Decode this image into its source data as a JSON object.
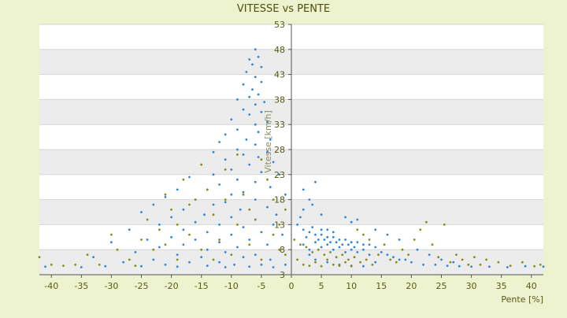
{
  "colors": {
    "background": "#eef3cf",
    "plot_band_light": "#ffffff",
    "plot_band_dark": "#ececec",
    "gridline": "#d6d6d6",
    "axis": "#555555",
    "text": "#595916",
    "series_blue": "#2e86d6",
    "series_olive": "#8a8a18"
  },
  "chart_data": {
    "type": "scatter",
    "title": "VITESSE vs PENTE",
    "xlabel": "Pente [%]",
    "ylabel": "Vitesse [km/h]",
    "xlim": [
      -42,
      42
    ],
    "ylim": [
      3,
      53
    ],
    "x_ticks": [
      -40,
      -35,
      -30,
      -25,
      -20,
      -15,
      -10,
      -5,
      0,
      5,
      10,
      15,
      20,
      25,
      30,
      35,
      40
    ],
    "y_ticks": [
      3,
      8,
      13,
      18,
      23,
      28,
      33,
      38,
      43,
      48,
      53
    ],
    "grid": true,
    "legend": "none",
    "series": [
      {
        "color": "#2e86d6",
        "points": [
          [
            -6,
            48
          ],
          [
            -5.5,
            46.5
          ],
          [
            -7,
            46
          ],
          [
            -6.5,
            45
          ],
          [
            -5,
            44.5
          ],
          [
            -7.5,
            43.5
          ],
          [
            -6,
            42.5
          ],
          [
            -5,
            41.5
          ],
          [
            -8,
            41
          ],
          [
            -6.5,
            40
          ],
          [
            -5.5,
            39
          ],
          [
            -7,
            38.5
          ],
          [
            -9,
            38
          ],
          [
            -4.5,
            37.5
          ],
          [
            -6,
            37
          ],
          [
            -8,
            36
          ],
          [
            -5,
            35.5
          ],
          [
            -7,
            35
          ],
          [
            -10,
            34
          ],
          [
            -4,
            33.5
          ],
          [
            -6,
            33
          ],
          [
            -9,
            32
          ],
          [
            -5.5,
            31.5
          ],
          [
            -11,
            31
          ],
          [
            -7.5,
            30
          ],
          [
            -3.5,
            30
          ],
          [
            -12,
            29.5
          ],
          [
            -6,
            29
          ],
          [
            -9,
            28
          ],
          [
            -4,
            27.5
          ],
          [
            -13,
            27.5
          ],
          [
            -8,
            27
          ],
          [
            -5.5,
            26.5
          ],
          [
            -11,
            26
          ],
          [
            -3,
            25.5
          ],
          [
            -15,
            25
          ],
          [
            -7,
            25
          ],
          [
            -10,
            24
          ],
          [
            -5,
            23.5
          ],
          [
            -13,
            23
          ],
          [
            -2,
            23
          ],
          [
            -17,
            22.5
          ],
          [
            -9,
            22
          ],
          [
            -6,
            21.5
          ],
          [
            -12,
            21
          ],
          [
            -3.5,
            20.5
          ],
          [
            -19,
            20
          ],
          [
            -14,
            20
          ],
          [
            -8,
            19.5
          ],
          [
            -10,
            19
          ],
          [
            -1,
            19
          ],
          [
            -21,
            18.5
          ],
          [
            -16,
            18
          ],
          [
            -6,
            18
          ],
          [
            -11,
            17.5
          ],
          [
            3,
            18
          ],
          [
            -23,
            17
          ],
          [
            -13,
            17
          ],
          [
            -4,
            16.5
          ],
          [
            -18,
            16
          ],
          [
            -8.5,
            16
          ],
          [
            -25,
            15.5
          ],
          [
            -14.5,
            15
          ],
          [
            -2.5,
            15
          ],
          [
            -20,
            14.5
          ],
          [
            -10,
            14.5
          ],
          [
            -6,
            14
          ],
          [
            -16,
            13.5
          ],
          [
            -22,
            13
          ],
          [
            -12,
            13
          ],
          [
            -3,
            13
          ],
          [
            -8,
            12.5
          ],
          [
            -18,
            12
          ],
          [
            -27,
            12
          ],
          [
            -14,
            11.5
          ],
          [
            -5,
            11.5
          ],
          [
            -10,
            11
          ],
          [
            -20,
            10.5
          ],
          [
            -1.5,
            11
          ],
          [
            -24,
            10
          ],
          [
            -16,
            10
          ],
          [
            -7,
            10
          ],
          [
            -12,
            9.5
          ],
          [
            -30,
            9.5
          ],
          [
            -4,
            9
          ],
          [
            -18,
            9
          ],
          [
            -9,
            8.5
          ],
          [
            -22,
            8.5
          ],
          [
            -14,
            8
          ],
          [
            -2,
            8
          ],
          [
            -26,
            7.5
          ],
          [
            -11,
            7.5
          ],
          [
            -6,
            7
          ],
          [
            -19,
            7
          ],
          [
            -15,
            6.5
          ],
          [
            -33,
            6.5
          ],
          [
            -8,
            6.5
          ],
          [
            -3.5,
            6
          ],
          [
            -23,
            6
          ],
          [
            -12,
            5.5
          ],
          [
            -28,
            5.5
          ],
          [
            -17,
            5.5
          ],
          [
            -5,
            5
          ],
          [
            -21,
            5
          ],
          [
            -9.5,
            5
          ],
          [
            -1,
            5
          ],
          [
            -14,
            4.8
          ],
          [
            -31,
            4.7
          ],
          [
            -25,
            4.7
          ],
          [
            -7,
            4.6
          ],
          [
            -19,
            4.6
          ],
          [
            -35,
            4.5
          ],
          [
            -11,
            4.5
          ],
          [
            -3,
            4.5
          ],
          [
            -41,
            4.6
          ],
          [
            1,
            13
          ],
          [
            2,
            12
          ],
          [
            3,
            11.5
          ],
          [
            4,
            11
          ],
          [
            5,
            11
          ],
          [
            6,
            10.5
          ],
          [
            7,
            10.5
          ],
          [
            8,
            10
          ],
          [
            9,
            10
          ],
          [
            10,
            9.5
          ],
          [
            11,
            9.5
          ],
          [
            12,
            9
          ],
          [
            13,
            9
          ],
          [
            14,
            8.5
          ],
          [
            4.5,
            10
          ],
          [
            5.5,
            10
          ],
          [
            6.5,
            9.5
          ],
          [
            7.5,
            9.5
          ],
          [
            8.5,
            9
          ],
          [
            9.5,
            9
          ],
          [
            10.5,
            8.5
          ],
          [
            3.5,
            12.5
          ],
          [
            5,
            12
          ],
          [
            6,
            12
          ],
          [
            7,
            11.5
          ],
          [
            2.5,
            10.5
          ],
          [
            4,
            9.5
          ],
          [
            6,
            9
          ],
          [
            8,
            8.5
          ],
          [
            10,
            8
          ],
          [
            12,
            8
          ],
          [
            5,
            8.5
          ],
          [
            7,
            8
          ],
          [
            9,
            7.5
          ],
          [
            11,
            7.5
          ],
          [
            3,
            8
          ],
          [
            13,
            7
          ],
          [
            15,
            7.5
          ],
          [
            16,
            7
          ],
          [
            17,
            6.5
          ],
          [
            18,
            6
          ],
          [
            19,
            6
          ],
          [
            20,
            5.5
          ],
          [
            22,
            5
          ],
          [
            24,
            5
          ],
          [
            26,
            4.8
          ],
          [
            28,
            4.7
          ],
          [
            30,
            4.6
          ],
          [
            33,
            4.6
          ],
          [
            36,
            4.5
          ],
          [
            39,
            4.7
          ],
          [
            42,
            4.6
          ],
          [
            2,
            16
          ],
          [
            3.5,
            17
          ],
          [
            5,
            15
          ],
          [
            9,
            14.5
          ],
          [
            10,
            13.5
          ],
          [
            11,
            14
          ],
          [
            14,
            12
          ],
          [
            16,
            11
          ],
          [
            18,
            10
          ],
          [
            21,
            8
          ],
          [
            23,
            7
          ],
          [
            25,
            6
          ],
          [
            27,
            5.5
          ],
          [
            4,
            21.5
          ],
          [
            2,
            20
          ],
          [
            1.5,
            14.5
          ],
          [
            2,
            9
          ],
          [
            3,
            7
          ],
          [
            4,
            6
          ],
          [
            6,
            5.5
          ],
          [
            8,
            5
          ],
          [
            10,
            4.8
          ],
          [
            12,
            4.7
          ],
          [
            14,
            5.5
          ]
        ]
      },
      {
        "color": "#8a8a18",
        "points": [
          [
            -42,
            6.5
          ],
          [
            -34,
            7
          ],
          [
            -32,
            5
          ],
          [
            -29,
            8
          ],
          [
            -27,
            6
          ],
          [
            -25,
            10
          ],
          [
            -24,
            14
          ],
          [
            -22,
            12
          ],
          [
            -21,
            9
          ],
          [
            -20,
            16
          ],
          [
            -19,
            13
          ],
          [
            -18,
            22
          ],
          [
            -17,
            11
          ],
          [
            -16,
            18
          ],
          [
            -15,
            8
          ],
          [
            -14,
            20
          ],
          [
            -13,
            15
          ],
          [
            -12,
            10
          ],
          [
            -11,
            24
          ],
          [
            -10,
            7
          ],
          [
            -9,
            13
          ],
          [
            -8,
            19
          ],
          [
            -7,
            9
          ],
          [
            -6,
            14
          ],
          [
            -5,
            6
          ],
          [
            -4,
            22
          ],
          [
            -3,
            11
          ],
          [
            -2,
            8
          ],
          [
            -1,
            16
          ],
          [
            0.5,
            10
          ],
          [
            1.5,
            9
          ],
          [
            2.5,
            8.5
          ],
          [
            3.5,
            7.5
          ],
          [
            4.5,
            8
          ],
          [
            5.5,
            7
          ],
          [
            6.5,
            7.5
          ],
          [
            7.5,
            6.5
          ],
          [
            8.5,
            7
          ],
          [
            9.5,
            6
          ],
          [
            10.5,
            6.5
          ],
          [
            11.5,
            5.5
          ],
          [
            12.5,
            6
          ],
          [
            13.5,
            5
          ],
          [
            14.5,
            7
          ],
          [
            15.5,
            9
          ],
          [
            16.5,
            6
          ],
          [
            17.5,
            5.5
          ],
          [
            18.5,
            8
          ],
          [
            19.5,
            7
          ],
          [
            20.5,
            10
          ],
          [
            21.5,
            12
          ],
          [
            22.5,
            13.5
          ],
          [
            23.5,
            9
          ],
          [
            24.5,
            6.5
          ],
          [
            25.5,
            13
          ],
          [
            26.5,
            5.5
          ],
          [
            27.5,
            7
          ],
          [
            28.5,
            6
          ],
          [
            29.5,
            5
          ],
          [
            30.5,
            6.5
          ],
          [
            31.5,
            5
          ],
          [
            32.5,
            6
          ],
          [
            34.5,
            5.5
          ],
          [
            36.5,
            4.8
          ],
          [
            38.5,
            5.5
          ],
          [
            40.5,
            4.7
          ],
          [
            41.5,
            5
          ],
          [
            1,
            6
          ],
          [
            2,
            5
          ],
          [
            3,
            4.8
          ],
          [
            4,
            5.5
          ],
          [
            5,
            4.7
          ],
          [
            6,
            6
          ],
          [
            7,
            5
          ],
          [
            8,
            4.8
          ],
          [
            9,
            5.5
          ],
          [
            10,
            4.7
          ],
          [
            11,
            12
          ],
          [
            12,
            11
          ],
          [
            13,
            10
          ],
          [
            -30,
            11
          ],
          [
            -26,
            4.8
          ],
          [
            -23,
            8
          ],
          [
            -21,
            19
          ],
          [
            -19,
            6
          ],
          [
            -17,
            17
          ],
          [
            -15,
            25
          ],
          [
            -13,
            6
          ],
          [
            -11,
            18
          ],
          [
            -9,
            27
          ],
          [
            -7,
            16
          ],
          [
            -5,
            26
          ],
          [
            -3,
            18
          ],
          [
            -2,
            13
          ],
          [
            -1,
            7
          ],
          [
            -36,
            5
          ],
          [
            -38,
            4.8
          ],
          [
            -40,
            5
          ]
        ]
      }
    ]
  }
}
